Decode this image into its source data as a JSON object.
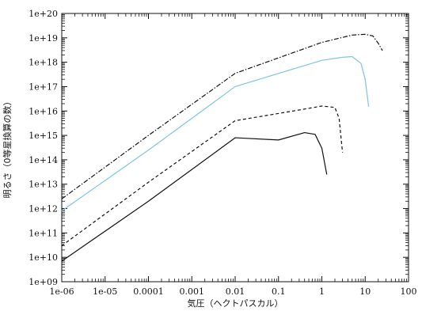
{
  "chart_data": {
    "type": "line",
    "xscale": "log",
    "yscale": "log",
    "xlim": [
      1e-06,
      100
    ],
    "ylim": [
      1000000000.0,
      1e+20
    ],
    "xlabel": "気圧（ヘクトパスカル）",
    "ylabel": "明るさ（0等星換算の数）",
    "xticks": [
      "1e-06",
      "1e-05",
      "0.0001",
      "0.001",
      "0.01",
      "0.1",
      "1",
      "10",
      "100"
    ],
    "yticks": [
      "1e+09",
      "1e+10",
      "1e+11",
      "1e+12",
      "1e+13",
      "1e+14",
      "1e+15",
      "1e+16",
      "1e+17",
      "1e+18",
      "1e+19",
      "1e+20"
    ],
    "grid": false,
    "series": [
      {
        "style": "dash-dot",
        "color": "#111111",
        "points": [
          [
            1e-06,
            2500000000000.0
          ],
          [
            0.0001,
            1000000000000000.0
          ],
          [
            0.01,
            3.5e+17
          ],
          [
            1,
            6.5e+18
          ],
          [
            5,
            1.3e+19
          ],
          [
            10,
            1.4e+19
          ],
          [
            15,
            1.2e+19
          ],
          [
            20,
            6e+18
          ],
          [
            25,
            3e+18
          ]
        ]
      },
      {
        "style": "solid",
        "color": "#7fc4e2",
        "points": [
          [
            1e-06,
            800000000000.0
          ],
          [
            0.0001,
            250000000000000.0
          ],
          [
            0.01,
            1e+17
          ],
          [
            1,
            1.2e+18
          ],
          [
            3,
            1.6e+18
          ],
          [
            5,
            1.7e+18
          ],
          [
            8,
            9e+17
          ],
          [
            10,
            2e+17
          ],
          [
            12,
            1.5e+16
          ]
        ]
      },
      {
        "style": "dashed",
        "color": "#111111",
        "points": [
          [
            1e-06,
            30000000000.0
          ],
          [
            0.0001,
            12000000000000.0
          ],
          [
            0.01,
            4000000000000000.0
          ],
          [
            0.3,
            1.1e+16
          ],
          [
            1,
            1.6e+16
          ],
          [
            2,
            1.4e+16
          ],
          [
            2.5,
            5000000000000000.0
          ],
          [
            3,
            200000000000000.0
          ]
        ]
      },
      {
        "style": "solid",
        "color": "#111111",
        "points": [
          [
            1e-06,
            7000000000.0
          ],
          [
            0.0001,
            2000000000000.0
          ],
          [
            0.01,
            800000000000000.0
          ],
          [
            0.1,
            650000000000000.0
          ],
          [
            0.4,
            1300000000000000.0
          ],
          [
            0.7,
            1100000000000000.0
          ],
          [
            1,
            300000000000000.0
          ],
          [
            1.3,
            25000000000000.0
          ]
        ]
      }
    ]
  }
}
